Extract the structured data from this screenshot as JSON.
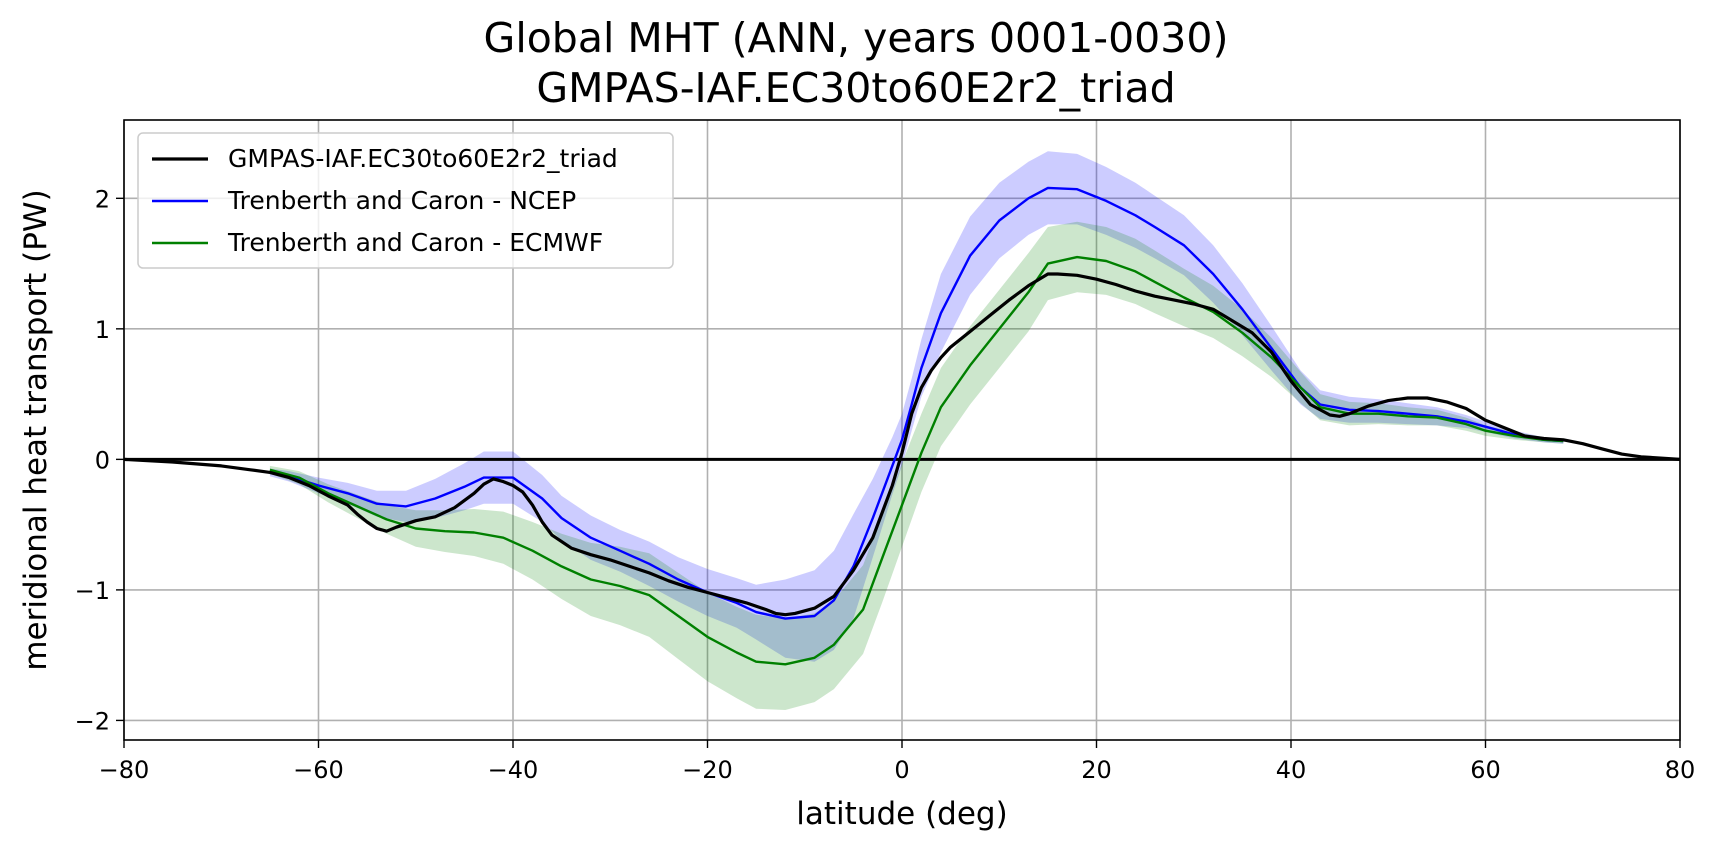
{
  "chart_data": {
    "type": "line",
    "title": "Global MHT (ANN, years 0001-0030)",
    "subtitle": "GMPAS-IAF.EC30to60E2r2_triad",
    "xlabel": "latitude (deg)",
    "ylabel": "meridional heat transport (PW)",
    "xlim": [
      -80,
      80
    ],
    "ylim": [
      -2.15,
      2.6
    ],
    "xticks": [
      -80,
      -60,
      -40,
      -20,
      0,
      20,
      40,
      60,
      80
    ],
    "xtick_labels": [
      "−80",
      "−60",
      "−40",
      "−20",
      "0",
      "20",
      "40",
      "60",
      "80"
    ],
    "yticks": [
      -2,
      -1,
      0,
      1,
      2
    ],
    "ytick_labels": [
      "−2",
      "−1",
      "0",
      "1",
      "2"
    ],
    "grid": true,
    "legend_position": "top-left",
    "zero_line": true,
    "series": [
      {
        "name": "GMPAS-IAF.EC30to60E2r2_triad",
        "color": "#000000",
        "x": [
          -80,
          -75,
          -70,
          -67,
          -65,
          -63,
          -61,
          -59,
          -57,
          -56,
          -55,
          -54,
          -53,
          -52,
          -50,
          -48,
          -46,
          -44,
          -43,
          -42,
          -41,
          -40,
          -39,
          -38,
          -37,
          -36,
          -34,
          -32,
          -30,
          -28,
          -26,
          -24,
          -22,
          -20,
          -18,
          -16,
          -14,
          -13,
          -12,
          -11,
          -10,
          -9,
          -7,
          -5,
          -3,
          -1,
          0,
          1,
          2,
          3,
          4,
          5,
          7,
          9,
          11,
          13,
          15,
          16,
          18,
          20,
          22,
          24,
          26,
          28,
          30,
          32,
          34,
          36,
          38,
          40,
          42,
          44,
          45,
          46,
          48,
          50,
          52,
          54,
          56,
          58,
          60,
          62,
          64,
          66,
          68,
          70,
          72,
          74,
          76,
          78,
          80
        ],
        "y": [
          0,
          -0.02,
          -0.05,
          -0.08,
          -0.1,
          -0.14,
          -0.2,
          -0.28,
          -0.35,
          -0.42,
          -0.48,
          -0.53,
          -0.55,
          -0.52,
          -0.47,
          -0.44,
          -0.37,
          -0.26,
          -0.19,
          -0.15,
          -0.17,
          -0.2,
          -0.25,
          -0.35,
          -0.48,
          -0.58,
          -0.68,
          -0.73,
          -0.77,
          -0.82,
          -0.87,
          -0.93,
          -0.98,
          -1.02,
          -1.06,
          -1.1,
          -1.15,
          -1.18,
          -1.19,
          -1.18,
          -1.16,
          -1.14,
          -1.05,
          -0.85,
          -0.6,
          -0.2,
          0.05,
          0.35,
          0.55,
          0.68,
          0.78,
          0.86,
          0.98,
          1.1,
          1.22,
          1.33,
          1.42,
          1.42,
          1.41,
          1.38,
          1.34,
          1.29,
          1.25,
          1.22,
          1.19,
          1.15,
          1.06,
          0.97,
          0.82,
          0.6,
          0.42,
          0.34,
          0.33,
          0.35,
          0.41,
          0.45,
          0.47,
          0.47,
          0.44,
          0.39,
          0.3,
          0.24,
          0.18,
          0.16,
          0.15,
          0.12,
          0.08,
          0.04,
          0.02,
          0.01,
          0
        ]
      },
      {
        "name": "Trenberth and Caron - NCEP",
        "color": "#0000ff",
        "band_color": "#0000ff",
        "band_opacity": 0.2,
        "x": [
          -65,
          -63,
          -60,
          -57,
          -54,
          -51,
          -48,
          -45,
          -43,
          -40,
          -37,
          -35,
          -32,
          -29,
          -26,
          -23,
          -20,
          -17,
          -15,
          -12,
          -9,
          -7,
          -5,
          -3,
          -1,
          0,
          1,
          2,
          4,
          7,
          10,
          13,
          15,
          18,
          21,
          24,
          26,
          29,
          32,
          35,
          38,
          41,
          43,
          46,
          49,
          52,
          55,
          58,
          60,
          63,
          66,
          68
        ],
        "y": [
          -0.1,
          -0.13,
          -0.2,
          -0.26,
          -0.34,
          -0.36,
          -0.3,
          -0.21,
          -0.14,
          -0.14,
          -0.3,
          -0.45,
          -0.6,
          -0.7,
          -0.8,
          -0.92,
          -1.02,
          -1.1,
          -1.17,
          -1.22,
          -1.2,
          -1.08,
          -0.82,
          -0.45,
          -0.05,
          0.15,
          0.42,
          0.7,
          1.12,
          1.56,
          1.83,
          2.0,
          2.08,
          2.07,
          1.98,
          1.87,
          1.78,
          1.64,
          1.42,
          1.15,
          0.85,
          0.55,
          0.42,
          0.38,
          0.37,
          0.35,
          0.33,
          0.29,
          0.25,
          0.19,
          0.15,
          0.14
        ],
        "band_width": [
          0.03,
          0.04,
          0.06,
          0.08,
          0.1,
          0.12,
          0.15,
          0.18,
          0.2,
          0.2,
          0.18,
          0.17,
          0.17,
          0.16,
          0.17,
          0.17,
          0.18,
          0.19,
          0.21,
          0.3,
          0.35,
          0.38,
          0.4,
          0.3,
          0.22,
          0.2,
          0.2,
          0.22,
          0.3,
          0.3,
          0.29,
          0.28,
          0.28,
          0.27,
          0.26,
          0.25,
          0.24,
          0.23,
          0.22,
          0.2,
          0.17,
          0.13,
          0.11,
          0.1,
          0.09,
          0.08,
          0.07,
          0.05,
          0.04,
          0.03,
          0.02,
          0.02
        ]
      },
      {
        "name": "Trenberth and Caron - ECMWF",
        "color": "#008000",
        "band_color": "#008000",
        "band_opacity": 0.2,
        "x": [
          -65,
          -62,
          -59,
          -56,
          -53,
          -50,
          -47,
          -44,
          -41,
          -38,
          -35,
          -32,
          -29,
          -26,
          -23,
          -20,
          -17,
          -15,
          -12,
          -9,
          -7,
          -4,
          -2,
          0,
          2,
          4,
          7,
          10,
          13,
          15,
          18,
          21,
          24,
          26,
          29,
          32,
          35,
          38,
          41,
          43,
          46,
          49,
          52,
          55,
          58,
          60,
          63,
          66,
          68
        ],
        "y": [
          -0.08,
          -0.14,
          -0.26,
          -0.36,
          -0.46,
          -0.53,
          -0.55,
          -0.56,
          -0.6,
          -0.7,
          -0.82,
          -0.92,
          -0.97,
          -1.04,
          -1.2,
          -1.36,
          -1.48,
          -1.55,
          -1.57,
          -1.52,
          -1.42,
          -1.15,
          -0.75,
          -0.35,
          0.05,
          0.4,
          0.72,
          1.0,
          1.28,
          1.5,
          1.55,
          1.52,
          1.44,
          1.36,
          1.24,
          1.13,
          0.97,
          0.78,
          0.55,
          0.4,
          0.35,
          0.35,
          0.33,
          0.32,
          0.27,
          0.22,
          0.18,
          0.15,
          0.14
        ],
        "band_width": [
          0.03,
          0.05,
          0.07,
          0.09,
          0.11,
          0.14,
          0.16,
          0.18,
          0.2,
          0.22,
          0.25,
          0.28,
          0.3,
          0.32,
          0.33,
          0.34,
          0.35,
          0.36,
          0.35,
          0.34,
          0.34,
          0.34,
          0.34,
          0.32,
          0.3,
          0.3,
          0.3,
          0.3,
          0.3,
          0.28,
          0.27,
          0.26,
          0.25,
          0.24,
          0.22,
          0.2,
          0.18,
          0.15,
          0.12,
          0.1,
          0.09,
          0.08,
          0.07,
          0.06,
          0.05,
          0.04,
          0.03,
          0.02,
          0.02
        ]
      }
    ]
  }
}
